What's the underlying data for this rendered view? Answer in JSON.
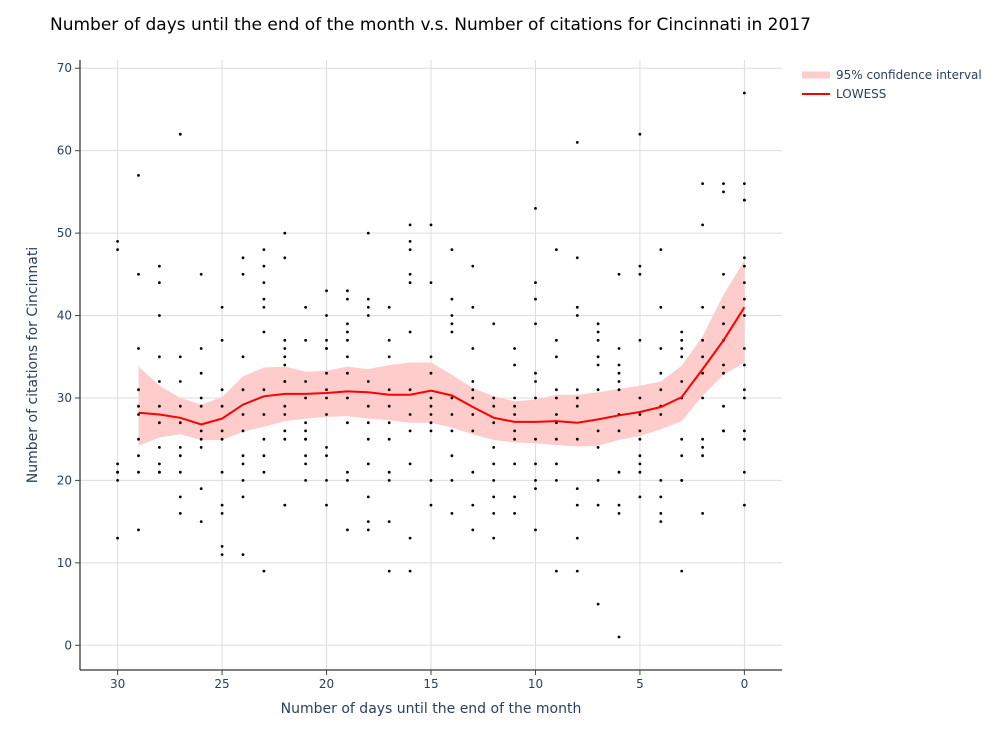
{
  "chart_data": {
    "type": "scatter",
    "title": "Number of days until the end of the month v.s. Number of citations for Cincinnati in 2017",
    "xlabel": "Number of days until the end of the month",
    "ylabel": "Number of citations for Cincinnati",
    "x_reversed": true,
    "xlim": [
      31.8,
      -1.8
    ],
    "ylim": [
      -3,
      71
    ],
    "x_ticks": [
      30,
      25,
      20,
      15,
      10,
      5,
      0
    ],
    "y_ticks": [
      0,
      10,
      20,
      30,
      40,
      50,
      60,
      70
    ],
    "grid": true,
    "legend_position": "top-right",
    "colors": {
      "points": "#000000",
      "lowess": "#ff0000",
      "ci_band": "#ffcccc",
      "grid": "#dddddd",
      "tick_text": "#2a3f5f"
    },
    "legend": [
      {
        "label": "95% confidence interval",
        "kind": "band"
      },
      {
        "label": "LOWESS",
        "kind": "line"
      }
    ],
    "lowess": {
      "x": [
        29,
        28,
        27,
        26,
        25,
        24,
        23,
        22,
        21,
        20,
        19,
        18,
        17,
        16,
        15,
        14,
        13,
        12,
        11,
        10,
        9,
        8,
        7,
        6,
        5,
        4,
        3,
        2,
        1,
        0
      ],
      "y": [
        28.2,
        28.0,
        27.6,
        26.8,
        27.5,
        29.2,
        30.2,
        30.5,
        30.5,
        30.6,
        30.8,
        30.7,
        30.4,
        30.4,
        30.9,
        30.3,
        28.9,
        27.6,
        27.1,
        27.1,
        27.2,
        27.0,
        27.4,
        27.9,
        28.3,
        28.9,
        30.1,
        33.5,
        37.0,
        41.0
      ]
    },
    "ci": {
      "x": [
        29,
        28,
        27,
        26,
        25,
        24,
        23,
        22,
        21,
        20,
        19,
        18,
        17,
        16,
        15,
        14,
        13,
        12,
        11,
        10,
        9,
        8,
        7,
        6,
        5,
        4,
        3,
        2,
        1,
        0
      ],
      "lower": [
        24.2,
        25.2,
        25.6,
        24.9,
        24.9,
        25.9,
        26.5,
        27.2,
        27.5,
        27.7,
        27.8,
        27.5,
        27.3,
        27.0,
        27.0,
        26.4,
        25.6,
        24.9,
        24.6,
        24.5,
        24.3,
        24.1,
        24.2,
        24.9,
        25.4,
        26.2,
        27.2,
        30.3,
        32.8,
        34.3
      ],
      "upper": [
        33.8,
        31.5,
        30.0,
        29.2,
        30.1,
        32.6,
        33.7,
        33.8,
        33.2,
        33.3,
        33.8,
        33.5,
        34.0,
        34.3,
        34.3,
        32.8,
        31.2,
        30.2,
        29.6,
        29.8,
        30.4,
        30.4,
        30.7,
        31.1,
        31.5,
        32.0,
        33.9,
        37.5,
        42.5,
        46.7
      ]
    },
    "points": {
      "x": [
        30,
        30,
        30,
        30,
        30,
        30,
        30,
        29,
        29,
        29,
        29,
        29,
        29,
        29,
        29,
        29,
        29,
        28,
        28,
        28,
        28,
        28,
        28,
        28,
        28,
        28,
        28,
        28,
        27,
        27,
        27,
        27,
        27,
        27,
        27,
        27,
        27,
        27,
        26,
        26,
        26,
        26,
        26,
        26,
        26,
        26,
        26,
        26,
        25,
        25,
        25,
        25,
        25,
        25,
        25,
        25,
        25,
        25,
        25,
        24,
        24,
        24,
        24,
        24,
        24,
        24,
        24,
        24,
        24,
        24,
        23,
        23,
        23,
        23,
        23,
        23,
        23,
        23,
        23,
        23,
        23,
        23,
        22,
        22,
        22,
        22,
        22,
        22,
        22,
        22,
        22,
        22,
        22,
        22,
        22,
        21,
        21,
        21,
        21,
        21,
        21,
        21,
        21,
        21,
        21,
        21,
        20,
        20,
        20,
        20,
        20,
        20,
        20,
        20,
        20,
        20,
        20,
        20,
        20,
        19,
        19,
        19,
        19,
        19,
        19,
        19,
        19,
        19,
        19,
        19,
        19,
        18,
        18,
        18,
        18,
        18,
        18,
        18,
        18,
        18,
        18,
        18,
        18,
        17,
        17,
        17,
        17,
        17,
        17,
        17,
        17,
        17,
        17,
        17,
        16,
        16,
        16,
        16,
        16,
        16,
        16,
        16,
        16,
        16,
        16,
        16,
        15,
        15,
        15,
        15,
        15,
        15,
        15,
        15,
        15,
        15,
        15,
        14,
        14,
        14,
        14,
        14,
        14,
        14,
        14,
        14,
        14,
        14,
        13,
        13,
        13,
        13,
        13,
        13,
        13,
        13,
        13,
        13,
        13,
        12,
        12,
        12,
        12,
        12,
        12,
        12,
        12,
        12,
        12,
        11,
        11,
        11,
        11,
        11,
        11,
        11,
        11,
        11,
        11,
        10,
        10,
        10,
        10,
        10,
        10,
        10,
        10,
        10,
        10,
        10,
        10,
        9,
        9,
        9,
        9,
        9,
        9,
        9,
        9,
        9,
        9,
        9,
        8,
        8,
        8,
        8,
        8,
        8,
        8,
        8,
        8,
        8,
        8,
        8,
        7,
        7,
        7,
        7,
        7,
        7,
        7,
        7,
        7,
        7,
        7,
        6,
        6,
        6,
        6,
        6,
        6,
        6,
        6,
        6,
        6,
        6,
        6,
        5,
        5,
        5,
        5,
        5,
        5,
        5,
        5,
        5,
        5,
        5,
        5,
        4,
        4,
        4,
        4,
        4,
        4,
        4,
        4,
        4,
        4,
        4,
        3,
        3,
        3,
        3,
        3,
        3,
        3,
        3,
        3,
        3,
        3,
        2,
        2,
        2,
        2,
        2,
        2,
        2,
        2,
        2,
        2,
        2,
        1,
        1,
        1,
        1,
        1,
        1,
        1,
        1,
        1,
        1,
        1,
        0,
        0,
        0,
        0,
        0,
        0,
        0,
        0,
        0,
        0,
        0,
        0,
        0,
        0,
        0,
        0,
        0
      ],
      "y": [
        49,
        48,
        22,
        21,
        21,
        20,
        13,
        57,
        45,
        36,
        31,
        29,
        28,
        25,
        23,
        21,
        14,
        46,
        44,
        40,
        35,
        32,
        29,
        27,
        24,
        22,
        21,
        21,
        62,
        35,
        32,
        29,
        27,
        24,
        23,
        21,
        18,
        16,
        45,
        36,
        33,
        30,
        29,
        26,
        25,
        24,
        19,
        15,
        41,
        37,
        31,
        29,
        26,
        25,
        21,
        17,
        16,
        12,
        11,
        47,
        45,
        35,
        31,
        28,
        26,
        23,
        22,
        20,
        18,
        11,
        48,
        46,
        44,
        42,
        41,
        38,
        31,
        28,
        25,
        23,
        21,
        9,
        50,
        47,
        37,
        36,
        35,
        34,
        32,
        29,
        28,
        26,
        25,
        17,
        32,
        41,
        37,
        32,
        30,
        27,
        26,
        25,
        23,
        22,
        20,
        25,
        43,
        40,
        37,
        36,
        33,
        31,
        30,
        28,
        24,
        23,
        20,
        17,
        36,
        43,
        42,
        39,
        38,
        37,
        35,
        33,
        30,
        27,
        21,
        20,
        14,
        50,
        42,
        41,
        40,
        32,
        29,
        27,
        25,
        22,
        18,
        15,
        14,
        41,
        37,
        35,
        31,
        29,
        27,
        25,
        21,
        20,
        15,
        9,
        51,
        49,
        48,
        45,
        44,
        38,
        31,
        28,
        26,
        22,
        13,
        9,
        51,
        44,
        35,
        33,
        30,
        29,
        28,
        27,
        26,
        20,
        17,
        48,
        42,
        40,
        39,
        38,
        30,
        28,
        26,
        23,
        20,
        16,
        46,
        41,
        36,
        32,
        31,
        30,
        28,
        26,
        21,
        17,
        14,
        39,
        30,
        29,
        27,
        24,
        22,
        20,
        18,
        16,
        13,
        36,
        34,
        30,
        29,
        28,
        26,
        25,
        22,
        18,
        16,
        53,
        44,
        42,
        39,
        33,
        32,
        30,
        25,
        22,
        20,
        19,
        14,
        48,
        37,
        35,
        31,
        30,
        28,
        27,
        25,
        22,
        20,
        9,
        61,
        47,
        41,
        40,
        31,
        30,
        29,
        25,
        19,
        17,
        13,
        9,
        39,
        38,
        37,
        35,
        34,
        31,
        26,
        24,
        20,
        17,
        5,
        45,
        36,
        34,
        33,
        32,
        31,
        28,
        26,
        21,
        17,
        16,
        1,
        62,
        46,
        45,
        37,
        30,
        28,
        26,
        25,
        23,
        22,
        21,
        18,
        48,
        41,
        36,
        33,
        31,
        29,
        28,
        20,
        18,
        16,
        15,
        38,
        37,
        36,
        35,
        32,
        30,
        25,
        23,
        20,
        20,
        9,
        56,
        51,
        41,
        37,
        35,
        33,
        30,
        25,
        24,
        23,
        16,
        56,
        55,
        45,
        41,
        39,
        37,
        34,
        33,
        29,
        26,
        26,
        67,
        56,
        54,
        54,
        47,
        46,
        44,
        42,
        40,
        36,
        34,
        31,
        30,
        26,
        25,
        17,
        21
      ]
    }
  }
}
